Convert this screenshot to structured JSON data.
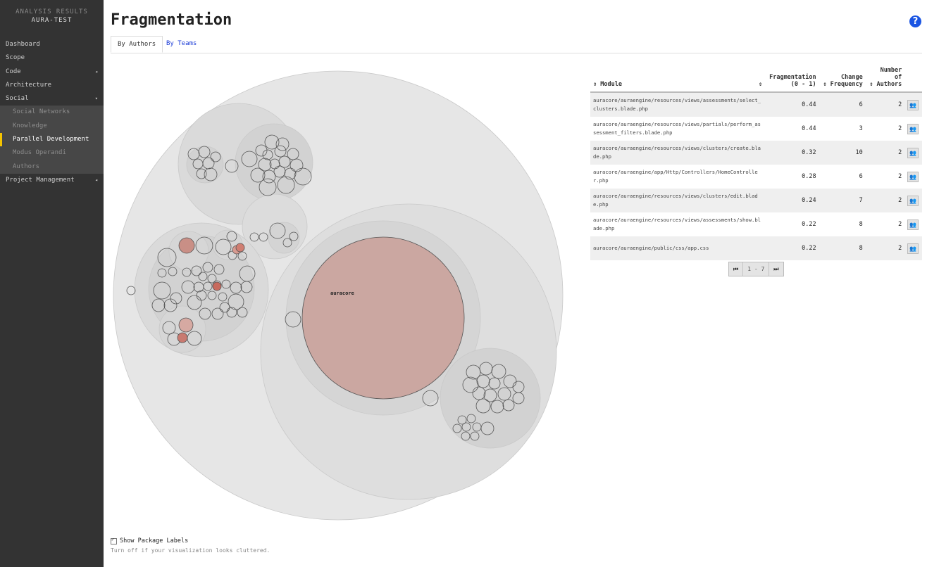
{
  "sidebar": {
    "header_line1": "ANALYSIS RESULTS",
    "header_line2": "AURA-TEST",
    "items": [
      {
        "label": "Dashboard"
      },
      {
        "label": "Scope"
      },
      {
        "label": "Code",
        "arrow": "◂"
      },
      {
        "label": "Architecture"
      },
      {
        "label": "Social",
        "arrow": "▾"
      },
      {
        "label": "Social Networks"
      },
      {
        "label": "Knowledge"
      },
      {
        "label": "Parallel Development"
      },
      {
        "label": "Modus Operandi"
      },
      {
        "label": "Authors"
      },
      {
        "label": "Project Management",
        "arrow": "◂"
      }
    ]
  },
  "page": {
    "title": "Fragmentation",
    "help_icon": "?"
  },
  "tabs": {
    "by_authors": "By Authors",
    "by_teams": "By Teams"
  },
  "viz": {
    "center_label": "auracore"
  },
  "table": {
    "headers": {
      "module": "⇕ Module",
      "sort_marker": "⇕",
      "fragmentation_1": "Fragmentation",
      "fragmentation_2": "(0 - 1)",
      "change_1": "Change",
      "change_2": "⇕ Frequency",
      "authors_1": "Number",
      "authors_2": "of",
      "authors_3": "⇕ Authors"
    },
    "rows": [
      {
        "module": "auracore/auraengine/resources/views/assessments/select_clusters.blade.php",
        "fragmentation": "0.44",
        "change_frequency": "6",
        "authors": "2"
      },
      {
        "module": "auracore/auraengine/resources/views/partials/perform_assessment_filters.blade.php",
        "fragmentation": "0.44",
        "change_frequency": "3",
        "authors": "2"
      },
      {
        "module": "auracore/auraengine/resources/views/clusters/create.blade.php",
        "fragmentation": "0.32",
        "change_frequency": "10",
        "authors": "2"
      },
      {
        "module": "auracore/auraengine/app/Http/Controllers/HomeController.php",
        "fragmentation": "0.28",
        "change_frequency": "6",
        "authors": "2"
      },
      {
        "module": "auracore/auraengine/resources/views/clusters/edit.blade.php",
        "fragmentation": "0.24",
        "change_frequency": "7",
        "authors": "2"
      },
      {
        "module": "auracore/auraengine/resources/views/assessments/show.blade.php",
        "fragmentation": "0.22",
        "change_frequency": "8",
        "authors": "2"
      },
      {
        "module": "auracore/auraengine/public/css/app.css",
        "fragmentation": "0.22",
        "change_frequency": "8",
        "authors": "2"
      }
    ],
    "row_action_icon": "authors-icon"
  },
  "pagination": {
    "first": "⏮",
    "range": "1 - 7",
    "last": "⏭"
  },
  "footer": {
    "checkbox_label": "Show Package Labels",
    "checked": true,
    "hint": "Turn off if your visualization looks cluttered."
  },
  "colors": {
    "sidebar": "#333333",
    "accent": "#f5c400",
    "link": "#1a3bd6",
    "highlight": "#cfa8a2"
  }
}
